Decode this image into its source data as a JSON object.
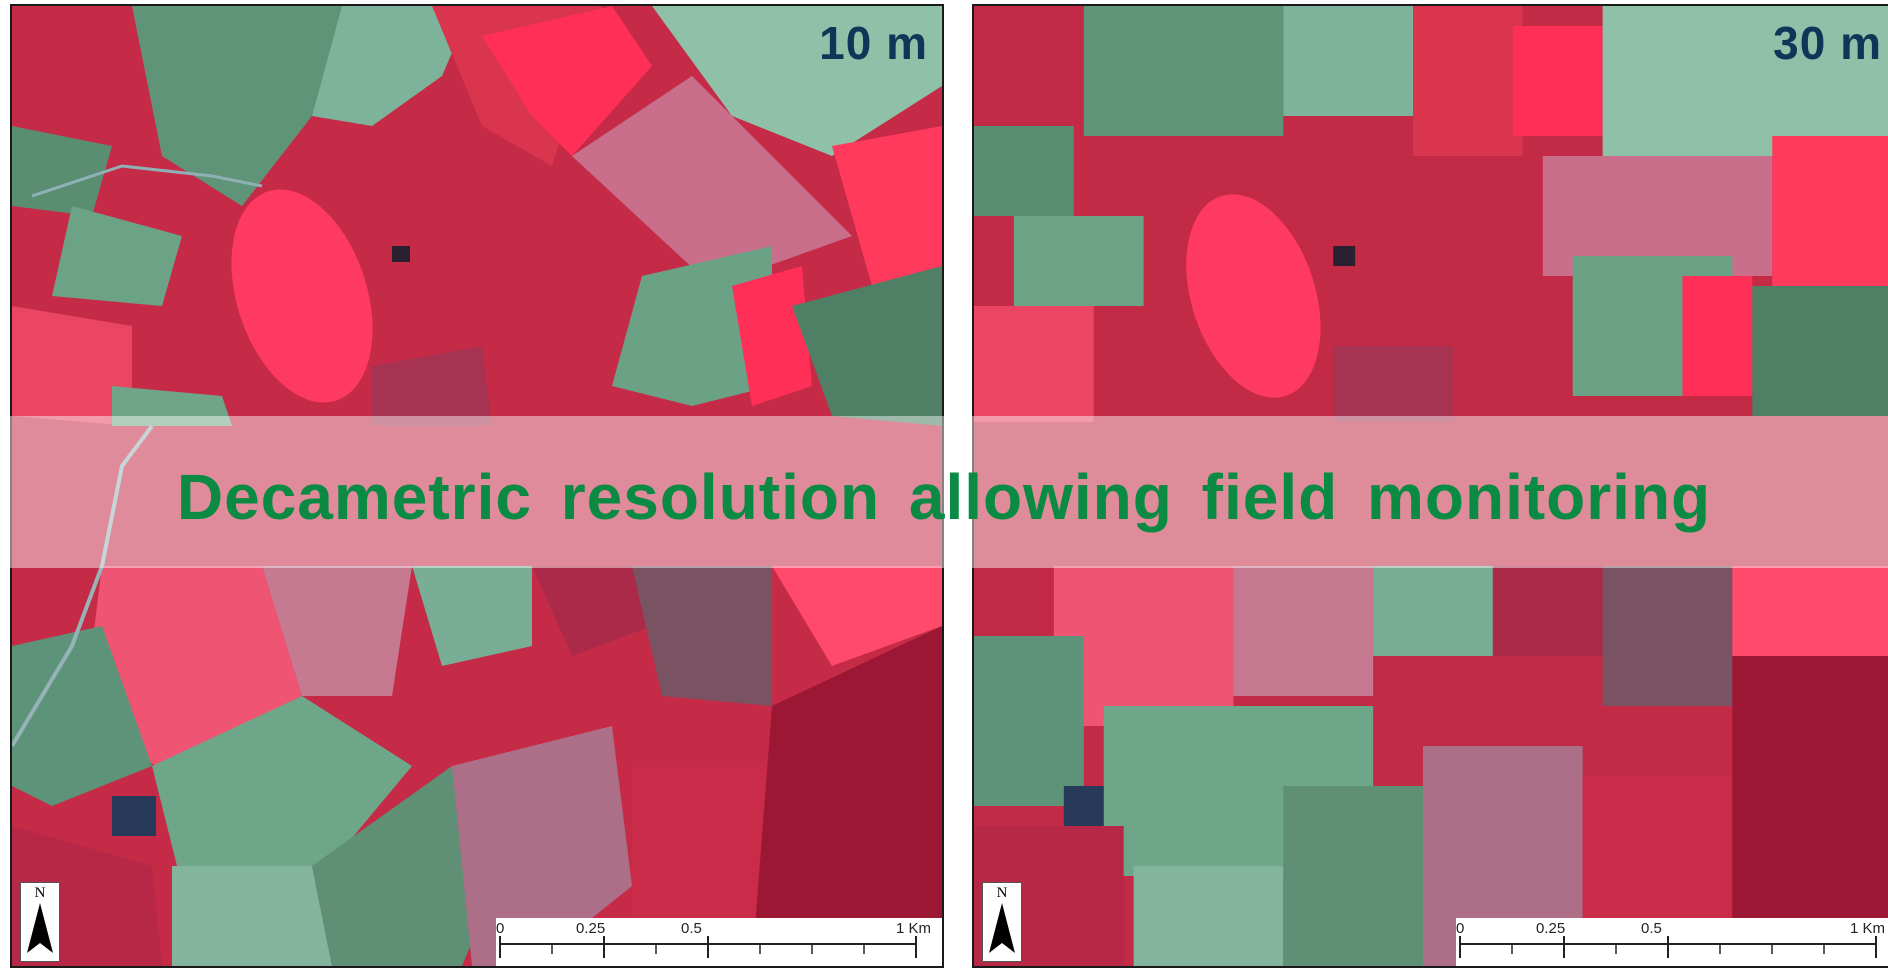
{
  "panels": [
    {
      "resolution_label": "10 m"
    },
    {
      "resolution_label": "30 m"
    }
  ],
  "banner": {
    "text": "Decametric resolution allowing field monitoring"
  },
  "north_arrow": {
    "label": "N"
  },
  "scale_bar": {
    "labels": [
      "0",
      "0.25",
      "0.5",
      "1 Km"
    ]
  },
  "colors": {
    "vegetation_red": "#d8203f",
    "bright_field_red": "#ff2a55",
    "bare_field_green": "#6fa589",
    "dark_field_green": "#4d7c63",
    "resolution_label": "#0e3757",
    "banner_text": "#0a8a43"
  }
}
